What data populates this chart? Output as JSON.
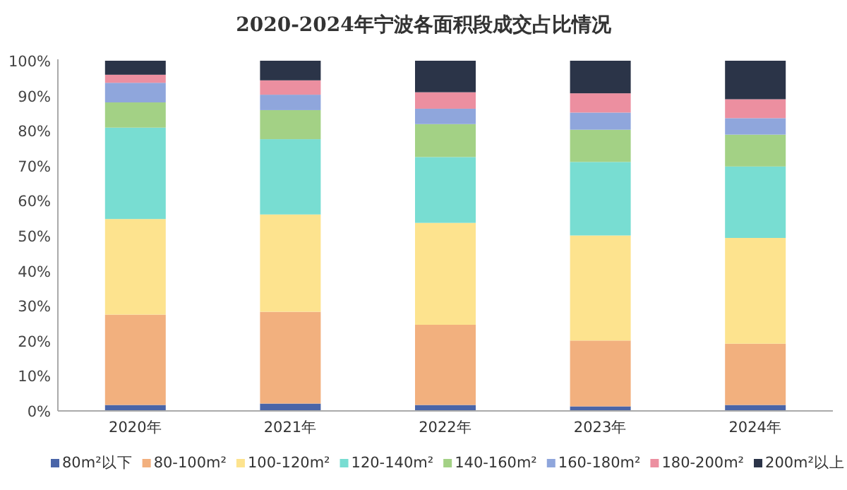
{
  "chart_data": {
    "type": "bar",
    "stacked": true,
    "title": "2020-2024年宁波各面积段成交占比情况",
    "categories": [
      "2020年",
      "2021年",
      "2022年",
      "2023年",
      "2024年"
    ],
    "ylim": [
      0,
      100
    ],
    "yticks": [
      {
        "value": 0,
        "label": "0%"
      },
      {
        "value": 10,
        "label": "10%"
      },
      {
        "value": 20,
        "label": "20%"
      },
      {
        "value": 30,
        "label": "30%"
      },
      {
        "value": 40,
        "label": "40%"
      },
      {
        "value": 50,
        "label": "50%"
      },
      {
        "value": 60,
        "label": "60%"
      },
      {
        "value": 70,
        "label": "70%"
      },
      {
        "value": 80,
        "label": "80%"
      },
      {
        "value": 90,
        "label": "90%"
      },
      {
        "value": 100,
        "label": "100%"
      }
    ],
    "legend": "bottom",
    "series": [
      {
        "name": "80m²以下",
        "color": "#4a65a8",
        "values": [
          1.7,
          2.1,
          1.7,
          1.3,
          1.7
        ]
      },
      {
        "name": "80-100m²",
        "color": "#f2b07e",
        "values": [
          25.8,
          26.2,
          22.9,
          18.8,
          17.5
        ]
      },
      {
        "name": "100-120m²",
        "color": "#fde38e",
        "values": [
          27.3,
          27.8,
          29.1,
          30.0,
          30.2
        ]
      },
      {
        "name": "120-140m²",
        "color": "#78ddd2",
        "values": [
          26.1,
          21.5,
          18.8,
          21.0,
          20.4
        ]
      },
      {
        "name": "140-160m²",
        "color": "#a3d185",
        "values": [
          7.2,
          8.3,
          9.4,
          9.2,
          9.1
        ]
      },
      {
        "name": "160-180m²",
        "color": "#8fa6dc",
        "values": [
          5.6,
          4.4,
          4.4,
          4.9,
          4.7
        ]
      },
      {
        "name": "180-200m²",
        "color": "#ec8fa0",
        "values": [
          2.3,
          4.1,
          4.7,
          5.5,
          5.4
        ]
      },
      {
        "name": "200m²以上",
        "color": "#2b3448",
        "values": [
          4.0,
          5.6,
          9.0,
          9.3,
          11.0
        ]
      }
    ]
  }
}
